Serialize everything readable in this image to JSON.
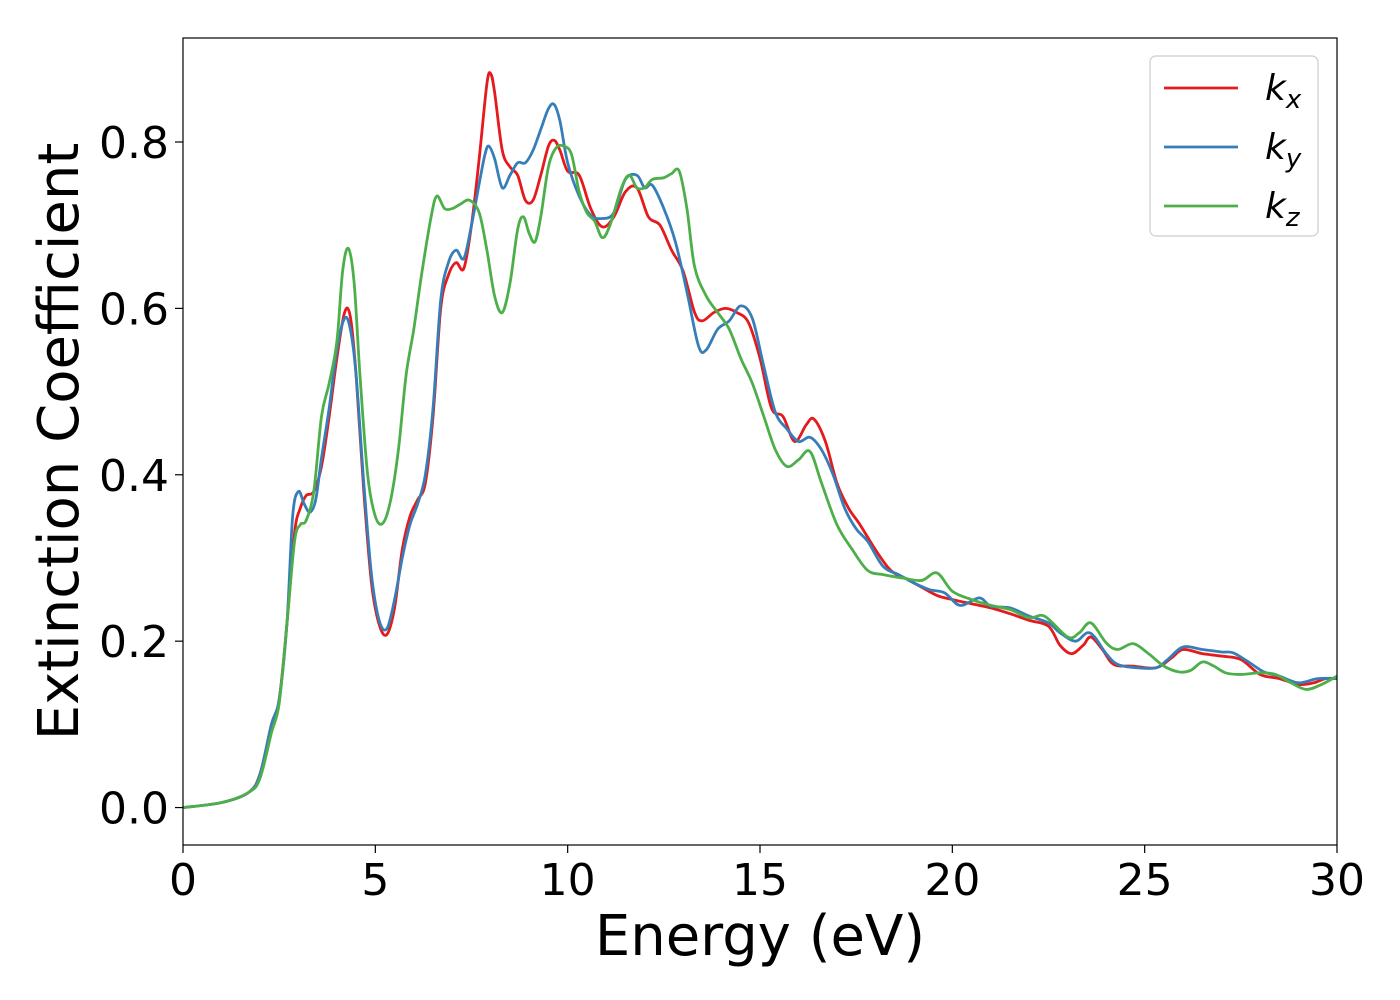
{
  "chart_data": {
    "type": "line",
    "title": "",
    "xlabel": "Energy (eV)",
    "ylabel": "Extinction Coefficient",
    "xlim": [
      0,
      30
    ],
    "ylim": [
      -0.045,
      0.925
    ],
    "xticks": [
      0,
      5,
      10,
      15,
      20,
      25,
      30
    ],
    "yticks": [
      0.0,
      0.2,
      0.4,
      0.6,
      0.8
    ],
    "xtick_labels": [
      "0",
      "5",
      "10",
      "15",
      "20",
      "25",
      "30"
    ],
    "ytick_labels": [
      "0.0",
      "0.2",
      "0.4",
      "0.6",
      "0.8"
    ],
    "grid": false,
    "legend_position": "top-right",
    "series": [
      {
        "name": "k_x",
        "label_base": "k",
        "label_sub": "x",
        "color": "#e41a1c",
        "points": [
          [
            0,
            0
          ],
          [
            1,
            0.006
          ],
          [
            1.7,
            0.018
          ],
          [
            2,
            0.04
          ],
          [
            2.3,
            0.1
          ],
          [
            2.5,
            0.13
          ],
          [
            2.7,
            0.22
          ],
          [
            2.9,
            0.33
          ],
          [
            3.05,
            0.36
          ],
          [
            3.2,
            0.375
          ],
          [
            3.4,
            0.38
          ],
          [
            3.6,
            0.41
          ],
          [
            3.8,
            0.47
          ],
          [
            4.0,
            0.54
          ],
          [
            4.2,
            0.595
          ],
          [
            4.35,
            0.59
          ],
          [
            4.5,
            0.52
          ],
          [
            4.7,
            0.38
          ],
          [
            4.9,
            0.27
          ],
          [
            5.1,
            0.22
          ],
          [
            5.3,
            0.208
          ],
          [
            5.5,
            0.24
          ],
          [
            5.7,
            0.31
          ],
          [
            5.9,
            0.35
          ],
          [
            6.1,
            0.37
          ],
          [
            6.3,
            0.39
          ],
          [
            6.5,
            0.47
          ],
          [
            6.7,
            0.6
          ],
          [
            6.9,
            0.64
          ],
          [
            7.1,
            0.655
          ],
          [
            7.3,
            0.648
          ],
          [
            7.5,
            0.7
          ],
          [
            7.7,
            0.78
          ],
          [
            7.9,
            0.87
          ],
          [
            8.0,
            0.882
          ],
          [
            8.1,
            0.86
          ],
          [
            8.3,
            0.79
          ],
          [
            8.5,
            0.77
          ],
          [
            8.7,
            0.76
          ],
          [
            8.9,
            0.73
          ],
          [
            9.1,
            0.73
          ],
          [
            9.3,
            0.76
          ],
          [
            9.5,
            0.795
          ],
          [
            9.65,
            0.802
          ],
          [
            9.8,
            0.79
          ],
          [
            10.0,
            0.765
          ],
          [
            10.3,
            0.76
          ],
          [
            10.6,
            0.72
          ],
          [
            10.9,
            0.698
          ],
          [
            11.2,
            0.71
          ],
          [
            11.5,
            0.74
          ],
          [
            11.8,
            0.745
          ],
          [
            12.1,
            0.71
          ],
          [
            12.4,
            0.7
          ],
          [
            12.7,
            0.67
          ],
          [
            13.0,
            0.645
          ],
          [
            13.3,
            0.595
          ],
          [
            13.5,
            0.585
          ],
          [
            13.8,
            0.595
          ],
          [
            14.1,
            0.6
          ],
          [
            14.4,
            0.595
          ],
          [
            14.7,
            0.583
          ],
          [
            15.0,
            0.54
          ],
          [
            15.3,
            0.48
          ],
          [
            15.6,
            0.47
          ],
          [
            15.9,
            0.44
          ],
          [
            16.2,
            0.46
          ],
          [
            16.4,
            0.467
          ],
          [
            16.7,
            0.44
          ],
          [
            17.0,
            0.39
          ],
          [
            17.3,
            0.36
          ],
          [
            17.6,
            0.34
          ],
          [
            18.0,
            0.31
          ],
          [
            18.4,
            0.285
          ],
          [
            18.8,
            0.275
          ],
          [
            19.2,
            0.265
          ],
          [
            19.6,
            0.255
          ],
          [
            20.0,
            0.25
          ],
          [
            20.5,
            0.245
          ],
          [
            21.0,
            0.24
          ],
          [
            21.5,
            0.233
          ],
          [
            22.0,
            0.225
          ],
          [
            22.5,
            0.218
          ],
          [
            22.8,
            0.195
          ],
          [
            23.1,
            0.185
          ],
          [
            23.4,
            0.195
          ],
          [
            23.6,
            0.205
          ],
          [
            23.9,
            0.19
          ],
          [
            24.2,
            0.172
          ],
          [
            24.7,
            0.17
          ],
          [
            25.3,
            0.168
          ],
          [
            25.7,
            0.18
          ],
          [
            26.0,
            0.19
          ],
          [
            26.5,
            0.185
          ],
          [
            27.0,
            0.182
          ],
          [
            27.5,
            0.178
          ],
          [
            28.0,
            0.16
          ],
          [
            28.5,
            0.155
          ],
          [
            29.0,
            0.148
          ],
          [
            29.4,
            0.15
          ],
          [
            29.7,
            0.155
          ],
          [
            30.0,
            0.155
          ]
        ]
      },
      {
        "name": "k_y",
        "label_base": "k",
        "label_sub": "y",
        "color": "#377eb8",
        "points": [
          [
            0,
            0
          ],
          [
            1,
            0.006
          ],
          [
            1.7,
            0.018
          ],
          [
            2,
            0.04
          ],
          [
            2.3,
            0.1
          ],
          [
            2.5,
            0.13
          ],
          [
            2.7,
            0.22
          ],
          [
            2.85,
            0.35
          ],
          [
            3.0,
            0.38
          ],
          [
            3.15,
            0.365
          ],
          [
            3.3,
            0.355
          ],
          [
            3.45,
            0.37
          ],
          [
            3.6,
            0.42
          ],
          [
            3.8,
            0.48
          ],
          [
            4.0,
            0.55
          ],
          [
            4.2,
            0.588
          ],
          [
            4.35,
            0.575
          ],
          [
            4.5,
            0.52
          ],
          [
            4.7,
            0.39
          ],
          [
            4.9,
            0.28
          ],
          [
            5.1,
            0.225
          ],
          [
            5.3,
            0.215
          ],
          [
            5.5,
            0.25
          ],
          [
            5.7,
            0.3
          ],
          [
            5.9,
            0.34
          ],
          [
            6.1,
            0.365
          ],
          [
            6.3,
            0.4
          ],
          [
            6.5,
            0.48
          ],
          [
            6.7,
            0.61
          ],
          [
            6.9,
            0.655
          ],
          [
            7.1,
            0.67
          ],
          [
            7.3,
            0.66
          ],
          [
            7.5,
            0.7
          ],
          [
            7.7,
            0.75
          ],
          [
            7.85,
            0.785
          ],
          [
            7.95,
            0.795
          ],
          [
            8.1,
            0.78
          ],
          [
            8.3,
            0.745
          ],
          [
            8.5,
            0.76
          ],
          [
            8.7,
            0.775
          ],
          [
            8.9,
            0.775
          ],
          [
            9.1,
            0.79
          ],
          [
            9.3,
            0.815
          ],
          [
            9.5,
            0.84
          ],
          [
            9.65,
            0.845
          ],
          [
            9.8,
            0.825
          ],
          [
            10.0,
            0.775
          ],
          [
            10.3,
            0.735
          ],
          [
            10.6,
            0.712
          ],
          [
            10.9,
            0.708
          ],
          [
            11.2,
            0.715
          ],
          [
            11.5,
            0.755
          ],
          [
            11.8,
            0.76
          ],
          [
            12.0,
            0.745
          ],
          [
            12.2,
            0.748
          ],
          [
            12.5,
            0.72
          ],
          [
            12.8,
            0.68
          ],
          [
            13.1,
            0.62
          ],
          [
            13.4,
            0.555
          ],
          [
            13.6,
            0.55
          ],
          [
            13.9,
            0.575
          ],
          [
            14.2,
            0.585
          ],
          [
            14.5,
            0.603
          ],
          [
            14.8,
            0.588
          ],
          [
            15.1,
            0.53
          ],
          [
            15.4,
            0.475
          ],
          [
            15.7,
            0.455
          ],
          [
            16.0,
            0.44
          ],
          [
            16.3,
            0.445
          ],
          [
            16.6,
            0.43
          ],
          [
            16.9,
            0.4
          ],
          [
            17.2,
            0.36
          ],
          [
            17.5,
            0.335
          ],
          [
            17.8,
            0.32
          ],
          [
            18.2,
            0.29
          ],
          [
            18.6,
            0.28
          ],
          [
            19.0,
            0.27
          ],
          [
            19.4,
            0.262
          ],
          [
            19.8,
            0.258
          ],
          [
            20.2,
            0.243
          ],
          [
            20.7,
            0.252
          ],
          [
            21.0,
            0.242
          ],
          [
            21.5,
            0.24
          ],
          [
            22.0,
            0.23
          ],
          [
            22.5,
            0.222
          ],
          [
            22.8,
            0.21
          ],
          [
            23.2,
            0.2
          ],
          [
            23.5,
            0.21
          ],
          [
            23.7,
            0.205
          ],
          [
            24.0,
            0.185
          ],
          [
            24.3,
            0.172
          ],
          [
            24.8,
            0.168
          ],
          [
            25.3,
            0.168
          ],
          [
            25.6,
            0.178
          ],
          [
            26.0,
            0.193
          ],
          [
            26.5,
            0.19
          ],
          [
            27.0,
            0.187
          ],
          [
            27.3,
            0.186
          ],
          [
            27.7,
            0.175
          ],
          [
            28.1,
            0.163
          ],
          [
            28.5,
            0.158
          ],
          [
            29.0,
            0.15
          ],
          [
            29.5,
            0.155
          ],
          [
            30.0,
            0.155
          ]
        ]
      },
      {
        "name": "k_z",
        "label_base": "k",
        "label_sub": "z",
        "color": "#4daf4a",
        "points": [
          [
            0,
            0
          ],
          [
            1,
            0.006
          ],
          [
            1.7,
            0.018
          ],
          [
            2,
            0.035
          ],
          [
            2.3,
            0.09
          ],
          [
            2.5,
            0.125
          ],
          [
            2.7,
            0.22
          ],
          [
            2.9,
            0.32
          ],
          [
            3.05,
            0.34
          ],
          [
            3.2,
            0.345
          ],
          [
            3.4,
            0.38
          ],
          [
            3.6,
            0.47
          ],
          [
            3.8,
            0.51
          ],
          [
            4.0,
            0.56
          ],
          [
            4.15,
            0.645
          ],
          [
            4.3,
            0.672
          ],
          [
            4.45,
            0.63
          ],
          [
            4.6,
            0.52
          ],
          [
            4.8,
            0.4
          ],
          [
            5.0,
            0.35
          ],
          [
            5.2,
            0.342
          ],
          [
            5.4,
            0.37
          ],
          [
            5.6,
            0.43
          ],
          [
            5.8,
            0.52
          ],
          [
            6.0,
            0.575
          ],
          [
            6.2,
            0.64
          ],
          [
            6.45,
            0.71
          ],
          [
            6.6,
            0.735
          ],
          [
            6.8,
            0.72
          ],
          [
            7.0,
            0.72
          ],
          [
            7.2,
            0.725
          ],
          [
            7.45,
            0.73
          ],
          [
            7.7,
            0.715
          ],
          [
            7.9,
            0.67
          ],
          [
            8.1,
            0.615
          ],
          [
            8.3,
            0.595
          ],
          [
            8.5,
            0.63
          ],
          [
            8.7,
            0.695
          ],
          [
            8.85,
            0.71
          ],
          [
            9.0,
            0.69
          ],
          [
            9.15,
            0.68
          ],
          [
            9.3,
            0.71
          ],
          [
            9.5,
            0.77
          ],
          [
            9.7,
            0.793
          ],
          [
            9.9,
            0.795
          ],
          [
            10.1,
            0.785
          ],
          [
            10.3,
            0.74
          ],
          [
            10.5,
            0.715
          ],
          [
            10.7,
            0.705
          ],
          [
            10.9,
            0.685
          ],
          [
            11.1,
            0.7
          ],
          [
            11.4,
            0.745
          ],
          [
            11.6,
            0.76
          ],
          [
            11.8,
            0.745
          ],
          [
            12.0,
            0.745
          ],
          [
            12.2,
            0.755
          ],
          [
            12.5,
            0.757
          ],
          [
            12.7,
            0.762
          ],
          [
            12.9,
            0.765
          ],
          [
            13.1,
            0.72
          ],
          [
            13.3,
            0.65
          ],
          [
            13.6,
            0.615
          ],
          [
            13.9,
            0.595
          ],
          [
            14.2,
            0.575
          ],
          [
            14.5,
            0.54
          ],
          [
            14.8,
            0.51
          ],
          [
            15.1,
            0.47
          ],
          [
            15.4,
            0.43
          ],
          [
            15.7,
            0.41
          ],
          [
            16.0,
            0.418
          ],
          [
            16.3,
            0.428
          ],
          [
            16.6,
            0.39
          ],
          [
            17.0,
            0.34
          ],
          [
            17.4,
            0.31
          ],
          [
            17.8,
            0.285
          ],
          [
            18.2,
            0.28
          ],
          [
            18.7,
            0.276
          ],
          [
            19.2,
            0.273
          ],
          [
            19.6,
            0.282
          ],
          [
            20.0,
            0.26
          ],
          [
            20.5,
            0.25
          ],
          [
            21.0,
            0.243
          ],
          [
            21.5,
            0.238
          ],
          [
            22.0,
            0.228
          ],
          [
            22.4,
            0.23
          ],
          [
            23.0,
            0.205
          ],
          [
            23.3,
            0.21
          ],
          [
            23.6,
            0.222
          ],
          [
            24.0,
            0.198
          ],
          [
            24.3,
            0.19
          ],
          [
            24.7,
            0.197
          ],
          [
            25.1,
            0.185
          ],
          [
            25.5,
            0.17
          ],
          [
            25.9,
            0.163
          ],
          [
            26.2,
            0.165
          ],
          [
            26.5,
            0.175
          ],
          [
            26.8,
            0.17
          ],
          [
            27.1,
            0.162
          ],
          [
            27.5,
            0.16
          ],
          [
            28.0,
            0.162
          ],
          [
            28.4,
            0.16
          ],
          [
            28.8,
            0.15
          ],
          [
            29.2,
            0.142
          ],
          [
            29.6,
            0.148
          ],
          [
            30.0,
            0.158
          ]
        ]
      }
    ]
  }
}
